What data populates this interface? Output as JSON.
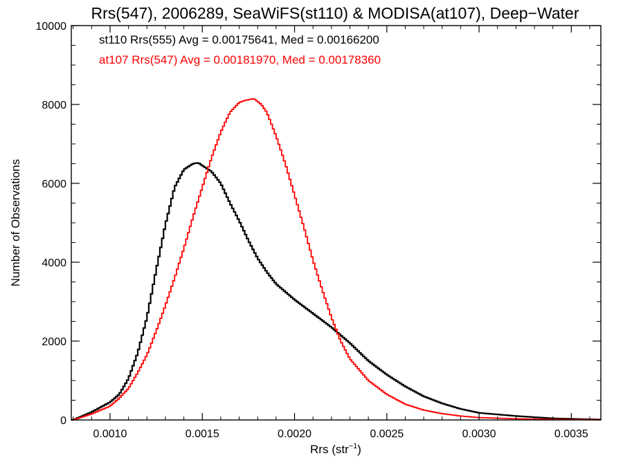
{
  "chart_data": {
    "type": "line",
    "title": "Rrs(547), 2006289, SeaWiFS(st110) & MODISA(at107), Deep−Water",
    "xlabel": "Rrs (str",
    "xlabel_sup": "−1",
    "xlabel_close": ")",
    "ylabel": "Number of Observations",
    "xlim": [
      0.00079,
      0.00366
    ],
    "ylim": [
      0,
      10000
    ],
    "xticks": [
      0.001,
      0.0015,
      0.002,
      0.0025,
      0.003,
      0.0035
    ],
    "xtick_labels": [
      "0.0010",
      "0.0015",
      "0.0020",
      "0.0025",
      "0.0030",
      "0.0035"
    ],
    "yticks": [
      0,
      2000,
      4000,
      6000,
      8000,
      10000
    ],
    "ytick_labels": [
      "0",
      "2000",
      "4000",
      "6000",
      "8000",
      "10000"
    ],
    "annotations": [
      "st110 Rrs(555) Avg = 0.00175641, Med = 0.00166200",
      "at107 Rrs(547) Avg = 0.00181970, Med = 0.00178360"
    ],
    "series": [
      {
        "color": "#000000",
        "x": [
          0.0008,
          0.0009,
          0.001,
          0.00105,
          0.0011,
          0.00115,
          0.0012,
          0.00125,
          0.0013,
          0.00135,
          0.0014,
          0.00145,
          0.00148,
          0.0015,
          0.00155,
          0.0016,
          0.00165,
          0.0017,
          0.00175,
          0.0018,
          0.00185,
          0.0019,
          0.00195,
          0.002,
          0.0021,
          0.0022,
          0.0023,
          0.0024,
          0.0025,
          0.0026,
          0.0027,
          0.0028,
          0.0029,
          0.003,
          0.0032,
          0.0034,
          0.00366
        ],
        "y": [
          0,
          200,
          450,
          650,
          1050,
          1700,
          2600,
          3800,
          4950,
          5900,
          6350,
          6500,
          6520,
          6450,
          6300,
          6000,
          5500,
          5050,
          4550,
          4100,
          3750,
          3450,
          3250,
          3050,
          2700,
          2350,
          1950,
          1500,
          1150,
          850,
          600,
          420,
          280,
          180,
          100,
          40,
          10
        ]
      },
      {
        "color": "#ff0000",
        "x": [
          0.0008,
          0.0009,
          0.001,
          0.00105,
          0.0011,
          0.00115,
          0.0012,
          0.00125,
          0.0013,
          0.00135,
          0.0014,
          0.00145,
          0.0015,
          0.00155,
          0.0016,
          0.00165,
          0.0017,
          0.00173,
          0.00178,
          0.00182,
          0.00185,
          0.0019,
          0.00195,
          0.002,
          0.00205,
          0.0021,
          0.00215,
          0.0022,
          0.00225,
          0.0023,
          0.0024,
          0.0025,
          0.0026,
          0.0027,
          0.0028,
          0.0029,
          0.003,
          0.0032,
          0.0034,
          0.00366
        ],
        "y": [
          0,
          150,
          350,
          550,
          800,
          1200,
          1650,
          2250,
          2900,
          3600,
          4350,
          5150,
          5900,
          6650,
          7300,
          7800,
          8050,
          8100,
          8150,
          8000,
          7800,
          7200,
          6500,
          5700,
          4900,
          4050,
          3300,
          2600,
          2000,
          1550,
          1000,
          650,
          400,
          250,
          160,
          100,
          60,
          30,
          15,
          5
        ]
      }
    ]
  }
}
